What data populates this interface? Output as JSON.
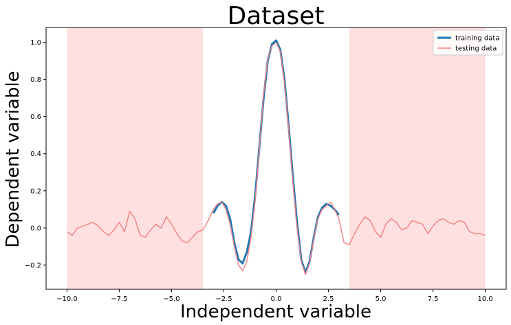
{
  "chart_data": {
    "type": "line",
    "title": "Dataset",
    "xlabel": "Independent variable",
    "ylabel": "Dependent variable",
    "xlim": [
      -11.0,
      11.0
    ],
    "ylim": [
      -0.33,
      1.08
    ],
    "xticks": [
      -10.0,
      -7.5,
      -5.0,
      -2.5,
      0.0,
      2.5,
      5.0,
      7.5,
      10.0
    ],
    "xtick_labels": [
      "−10.0",
      "−7.5",
      "−5.0",
      "−2.5",
      "0.0",
      "2.5",
      "5.0",
      "7.5",
      "10.0"
    ],
    "yticks": [
      -0.2,
      0.0,
      0.2,
      0.4,
      0.6,
      0.8,
      1.0
    ],
    "ytick_labels": [
      "−0.2",
      "0.0",
      "0.2",
      "0.4",
      "0.6",
      "0.8",
      "1.0"
    ],
    "shaded_regions": [
      {
        "x0": -10.0,
        "x1": -3.5,
        "color": "#ffe0e0"
      },
      {
        "x0": 3.5,
        "x1": 10.0,
        "color": "#ffe0e0"
      }
    ],
    "legend_position": "top-right",
    "grid": false,
    "series": [
      {
        "name": "training data",
        "color": "#1f77b4",
        "width": 3,
        "x": [
          -3.0,
          -2.8,
          -2.6,
          -2.4,
          -2.2,
          -2.0,
          -1.8,
          -1.6,
          -1.4,
          -1.2,
          -1.0,
          -0.8,
          -0.6,
          -0.4,
          -0.2,
          0.0,
          0.2,
          0.4,
          0.6,
          0.8,
          1.0,
          1.2,
          1.4,
          1.6,
          1.8,
          2.0,
          2.2,
          2.4,
          2.6,
          2.8,
          3.0
        ],
        "y": [
          0.08,
          0.12,
          0.14,
          0.12,
          0.05,
          -0.08,
          -0.17,
          -0.19,
          -0.13,
          -0.02,
          0.18,
          0.44,
          0.7,
          0.9,
          0.99,
          1.01,
          0.96,
          0.8,
          0.55,
          0.28,
          0.03,
          -0.17,
          -0.24,
          -0.18,
          -0.05,
          0.06,
          0.11,
          0.13,
          0.12,
          0.1,
          0.07
        ]
      },
      {
        "name": "testing data",
        "color": "#f08080",
        "width": 1.5,
        "x": [
          -10.0,
          -9.75,
          -9.5,
          -9.25,
          -9.0,
          -8.75,
          -8.5,
          -8.25,
          -8.0,
          -7.75,
          -7.5,
          -7.25,
          -7.0,
          -6.75,
          -6.5,
          -6.25,
          -6.0,
          -5.75,
          -5.5,
          -5.25,
          -5.0,
          -4.75,
          -4.5,
          -4.25,
          -4.0,
          -3.75,
          -3.5,
          -3.25,
          -3.0,
          -2.8,
          -2.6,
          -2.4,
          -2.2,
          -2.0,
          -1.8,
          -1.6,
          -1.4,
          -1.2,
          -1.0,
          -0.8,
          -0.6,
          -0.4,
          -0.2,
          0.0,
          0.2,
          0.4,
          0.6,
          0.8,
          1.0,
          1.2,
          1.4,
          1.6,
          1.8,
          2.0,
          2.2,
          2.4,
          2.6,
          2.8,
          3.0,
          3.25,
          3.5,
          3.75,
          4.0,
          4.25,
          4.5,
          4.75,
          5.0,
          5.25,
          5.5,
          5.75,
          6.0,
          6.25,
          6.5,
          6.75,
          7.0,
          7.25,
          7.5,
          7.75,
          8.0,
          8.25,
          8.5,
          8.75,
          9.0,
          9.25,
          9.5,
          9.75,
          10.0
        ],
        "y": [
          -0.02,
          -0.04,
          0.0,
          0.01,
          0.02,
          0.03,
          0.01,
          -0.02,
          -0.04,
          -0.01,
          0.03,
          -0.02,
          0.09,
          0.05,
          -0.04,
          -0.05,
          -0.01,
          0.02,
          0.0,
          0.06,
          0.02,
          -0.03,
          -0.07,
          -0.08,
          -0.05,
          -0.02,
          -0.01,
          0.04,
          0.1,
          0.13,
          0.14,
          0.1,
          0.02,
          -0.1,
          -0.2,
          -0.23,
          -0.18,
          -0.05,
          0.15,
          0.43,
          0.72,
          0.91,
          0.98,
          1.0,
          0.95,
          0.78,
          0.53,
          0.25,
          0.0,
          -0.18,
          -0.25,
          -0.19,
          -0.06,
          0.05,
          0.1,
          0.12,
          0.14,
          0.1,
          0.05,
          -0.08,
          -0.09,
          -0.03,
          0.02,
          0.06,
          0.04,
          -0.02,
          -0.05,
          0.02,
          0.05,
          0.03,
          -0.01,
          0.0,
          0.04,
          0.03,
          0.02,
          -0.03,
          0.01,
          0.04,
          0.05,
          0.03,
          0.02,
          0.04,
          0.03,
          -0.02,
          -0.03,
          -0.03,
          -0.04
        ]
      }
    ]
  }
}
